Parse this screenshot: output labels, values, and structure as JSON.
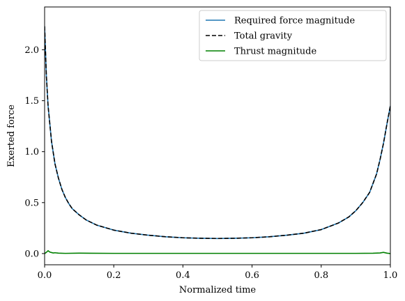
{
  "chart_data": {
    "type": "line",
    "title": "",
    "xlabel": "Normalized time",
    "ylabel": "Exerted force",
    "xlim": [
      0,
      1
    ],
    "ylim": [
      -0.11,
      2.42
    ],
    "x_ticks": [
      0.0,
      0.2,
      0.4,
      0.6,
      0.8,
      1.0
    ],
    "x_tick_labels": [
      "0.0",
      "0.2",
      "0.4",
      "0.6",
      "0.8",
      "1.0"
    ],
    "y_ticks": [
      0.0,
      0.5,
      1.0,
      1.5,
      2.0
    ],
    "y_tick_labels": [
      "0.0",
      "0.5",
      "1.0",
      "1.5",
      "2.0"
    ],
    "grid": false,
    "legend_position": "top-right",
    "series": [
      {
        "name": "Required force magnitude",
        "color": "#1f77b4",
        "style": "solid",
        "x": [
          0.0,
          0.005,
          0.01,
          0.02,
          0.03,
          0.04,
          0.05,
          0.06,
          0.07,
          0.08,
          0.1,
          0.12,
          0.15,
          0.2,
          0.25,
          0.3,
          0.35,
          0.4,
          0.45,
          0.5,
          0.55,
          0.6,
          0.65,
          0.7,
          0.75,
          0.8,
          0.85,
          0.88,
          0.9,
          0.92,
          0.94,
          0.96,
          0.97,
          0.98,
          0.99,
          1.0
        ],
        "y": [
          2.23,
          1.75,
          1.45,
          1.1,
          0.88,
          0.74,
          0.63,
          0.55,
          0.49,
          0.44,
          0.38,
          0.33,
          0.28,
          0.23,
          0.2,
          0.18,
          0.165,
          0.155,
          0.15,
          0.148,
          0.15,
          0.155,
          0.165,
          0.18,
          0.2,
          0.235,
          0.3,
          0.36,
          0.42,
          0.5,
          0.6,
          0.78,
          0.92,
          1.08,
          1.27,
          1.45
        ]
      },
      {
        "name": "Total gravity",
        "color": "#000000",
        "style": "dashed",
        "x": [
          0.0,
          0.005,
          0.01,
          0.02,
          0.03,
          0.04,
          0.05,
          0.06,
          0.07,
          0.08,
          0.1,
          0.12,
          0.15,
          0.2,
          0.25,
          0.3,
          0.35,
          0.4,
          0.45,
          0.5,
          0.55,
          0.6,
          0.65,
          0.7,
          0.75,
          0.8,
          0.85,
          0.88,
          0.9,
          0.92,
          0.94,
          0.96,
          0.97,
          0.98,
          0.99,
          1.0
        ],
        "y": [
          2.23,
          1.75,
          1.45,
          1.1,
          0.88,
          0.74,
          0.63,
          0.55,
          0.49,
          0.44,
          0.38,
          0.33,
          0.28,
          0.23,
          0.2,
          0.18,
          0.165,
          0.155,
          0.15,
          0.148,
          0.15,
          0.155,
          0.165,
          0.18,
          0.2,
          0.235,
          0.3,
          0.36,
          0.42,
          0.5,
          0.6,
          0.78,
          0.92,
          1.08,
          1.27,
          1.45
        ]
      },
      {
        "name": "Thrust magnitude",
        "color": "#008000",
        "style": "solid",
        "x": [
          0.0,
          0.005,
          0.01,
          0.015,
          0.02,
          0.025,
          0.03,
          0.04,
          0.06,
          0.1,
          0.2,
          0.3,
          0.4,
          0.5,
          0.6,
          0.7,
          0.8,
          0.9,
          0.95,
          0.97,
          0.98,
          0.99,
          1.0
        ],
        "y": [
          0.0,
          0.012,
          0.028,
          0.015,
          0.01,
          0.006,
          0.008,
          0.004,
          0.002,
          0.004,
          0.002,
          0.002,
          0.002,
          0.002,
          0.002,
          0.002,
          0.002,
          0.002,
          0.003,
          0.006,
          0.012,
          0.004,
          0.0
        ]
      }
    ]
  }
}
